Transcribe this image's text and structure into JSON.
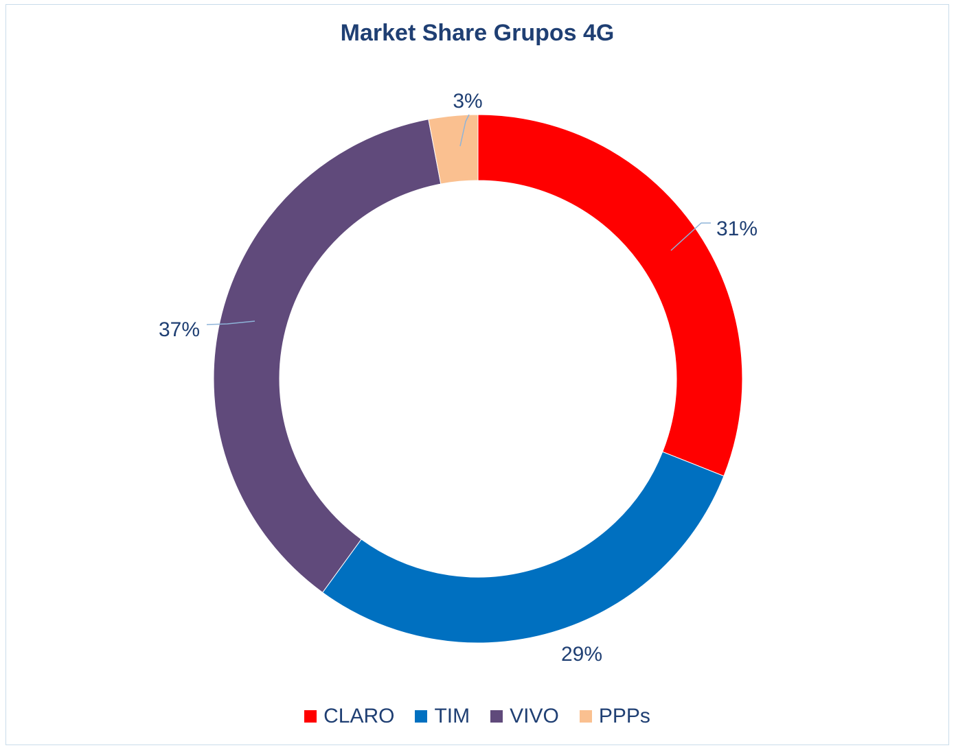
{
  "chart_data": {
    "type": "pie",
    "variant": "donut",
    "title": "Market Share Grupos 4G",
    "legend_position": "bottom",
    "series": [
      {
        "name": "CLARO",
        "value": 31,
        "label": "31%",
        "color": "#ff0000"
      },
      {
        "name": "TIM",
        "value": 29,
        "label": "29%",
        "color": "#0070c0"
      },
      {
        "name": "VIVO",
        "value": 37,
        "label": "37%",
        "color": "#604a7b"
      },
      {
        "name": "PPPs",
        "value": 3,
        "label": "3%",
        "color": "#fac090"
      }
    ]
  }
}
